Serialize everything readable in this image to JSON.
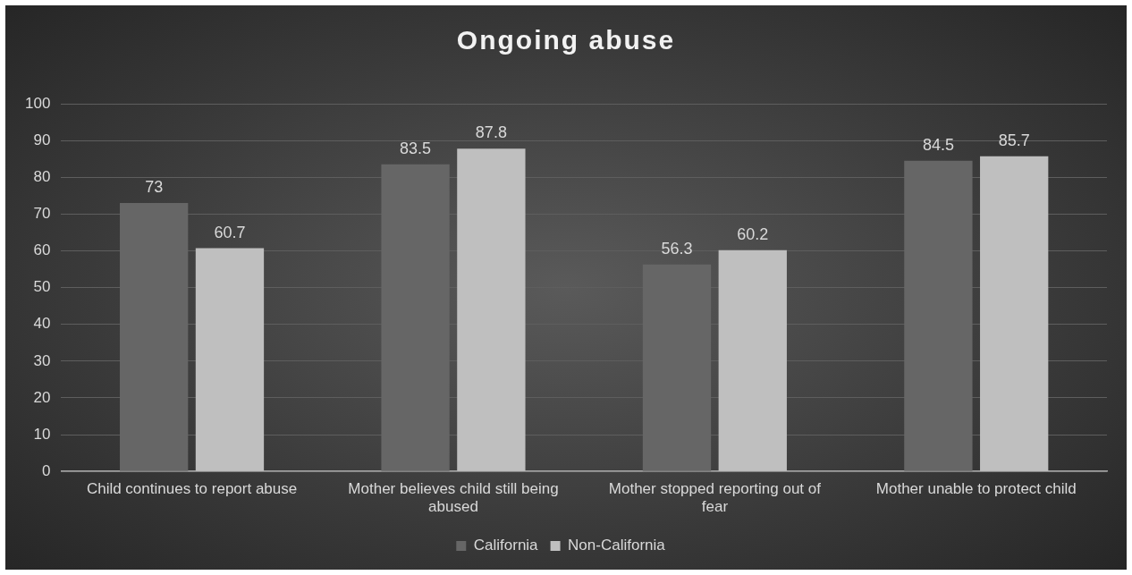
{
  "chart_data": {
    "type": "bar",
    "title": "Ongoing abuse",
    "categories": [
      "Child continues to report abuse",
      "Mother believes child still being abused",
      "Mother stopped reporting out of fear",
      "Mother unable to protect child"
    ],
    "series": [
      {
        "name": "California",
        "color": "#666666",
        "values": [
          73,
          83.5,
          56.3,
          84.5
        ]
      },
      {
        "name": "Non-California",
        "color": "#bfbfbf",
        "values": [
          60.7,
          87.8,
          60.2,
          85.7
        ]
      }
    ],
    "ylim": [
      0,
      100
    ],
    "yticks": [
      0,
      10,
      20,
      30,
      40,
      50,
      60,
      70,
      80,
      90,
      100
    ],
    "grid": "y",
    "legend": "bottom",
    "data_labels": true
  }
}
